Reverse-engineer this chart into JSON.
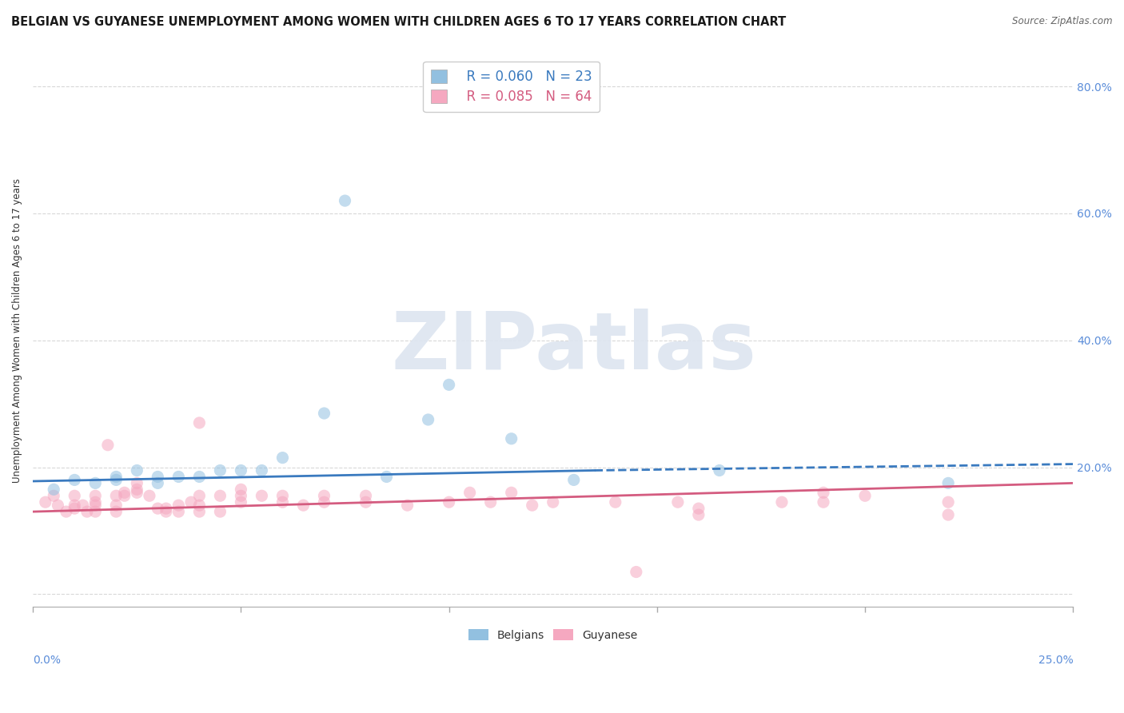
{
  "title": "BELGIAN VS GUYANESE UNEMPLOYMENT AMONG WOMEN WITH CHILDREN AGES 6 TO 17 YEARS CORRELATION CHART",
  "source": "Source: ZipAtlas.com",
  "ylabel": "Unemployment Among Women with Children Ages 6 to 17 years",
  "legend_blue_r": "R = 0.060",
  "legend_blue_n": "N = 23",
  "legend_pink_r": "R = 0.085",
  "legend_pink_n": "N = 64",
  "blue_label": "Belgians",
  "pink_label": "Guyanese",
  "xlim": [
    0.0,
    0.25
  ],
  "ylim": [
    -0.02,
    0.85
  ],
  "right_yticks": [
    0.0,
    0.2,
    0.4,
    0.6,
    0.8
  ],
  "right_yticklabels": [
    "",
    "20.0%",
    "40.0%",
    "60.0%",
    "80.0%"
  ],
  "blue_color": "#92c0e0",
  "blue_trend_color": "#3a7abf",
  "pink_color": "#f5a8c0",
  "pink_trend_color": "#d45c80",
  "background_color": "#ffffff",
  "grid_color": "#d8d8d8",
  "title_fontsize": 10.5,
  "axis_label_fontsize": 8.5,
  "tick_fontsize": 10,
  "legend_fontsize": 12,
  "scatter_size": 120,
  "scatter_alpha": 0.55,
  "blue_scatter_x": [
    0.005,
    0.01,
    0.015,
    0.02,
    0.02,
    0.025,
    0.03,
    0.03,
    0.035,
    0.04,
    0.045,
    0.05,
    0.055,
    0.06,
    0.07,
    0.075,
    0.085,
    0.095,
    0.1,
    0.115,
    0.13,
    0.165,
    0.22
  ],
  "blue_scatter_y": [
    0.165,
    0.18,
    0.175,
    0.18,
    0.185,
    0.195,
    0.175,
    0.185,
    0.185,
    0.185,
    0.195,
    0.195,
    0.195,
    0.215,
    0.285,
    0.62,
    0.185,
    0.275,
    0.33,
    0.245,
    0.18,
    0.195,
    0.175
  ],
  "pink_scatter_x": [
    0.003,
    0.005,
    0.006,
    0.008,
    0.01,
    0.01,
    0.01,
    0.012,
    0.013,
    0.015,
    0.015,
    0.015,
    0.015,
    0.018,
    0.02,
    0.02,
    0.02,
    0.022,
    0.022,
    0.025,
    0.025,
    0.025,
    0.028,
    0.03,
    0.032,
    0.032,
    0.035,
    0.035,
    0.038,
    0.04,
    0.04,
    0.04,
    0.04,
    0.045,
    0.045,
    0.05,
    0.05,
    0.05,
    0.055,
    0.06,
    0.06,
    0.065,
    0.07,
    0.07,
    0.08,
    0.08,
    0.09,
    0.1,
    0.105,
    0.11,
    0.115,
    0.12,
    0.125,
    0.14,
    0.145,
    0.155,
    0.16,
    0.16,
    0.18,
    0.19,
    0.19,
    0.2,
    0.22,
    0.22
  ],
  "pink_scatter_y": [
    0.145,
    0.155,
    0.14,
    0.13,
    0.135,
    0.14,
    0.155,
    0.14,
    0.13,
    0.13,
    0.14,
    0.145,
    0.155,
    0.235,
    0.13,
    0.14,
    0.155,
    0.155,
    0.16,
    0.16,
    0.165,
    0.175,
    0.155,
    0.135,
    0.13,
    0.135,
    0.13,
    0.14,
    0.145,
    0.13,
    0.14,
    0.155,
    0.27,
    0.13,
    0.155,
    0.145,
    0.155,
    0.165,
    0.155,
    0.145,
    0.155,
    0.14,
    0.145,
    0.155,
    0.145,
    0.155,
    0.14,
    0.145,
    0.16,
    0.145,
    0.16,
    0.14,
    0.145,
    0.145,
    0.035,
    0.145,
    0.125,
    0.135,
    0.145,
    0.16,
    0.145,
    0.155,
    0.145,
    0.125
  ],
  "blue_trend_x": [
    0.0,
    0.135,
    0.135,
    0.25
  ],
  "blue_trend_y": [
    0.178,
    0.195,
    0.195,
    0.205
  ],
  "blue_trend_style": [
    "solid",
    "dashed"
  ],
  "blue_trend_switch": 0.135,
  "pink_trend_x": [
    0.0,
    0.25
  ],
  "pink_trend_y": [
    0.13,
    0.175
  ],
  "watermark_text": "ZIPatlas",
  "watermark_color": "#dde5f0",
  "watermark_fontsize": 72
}
